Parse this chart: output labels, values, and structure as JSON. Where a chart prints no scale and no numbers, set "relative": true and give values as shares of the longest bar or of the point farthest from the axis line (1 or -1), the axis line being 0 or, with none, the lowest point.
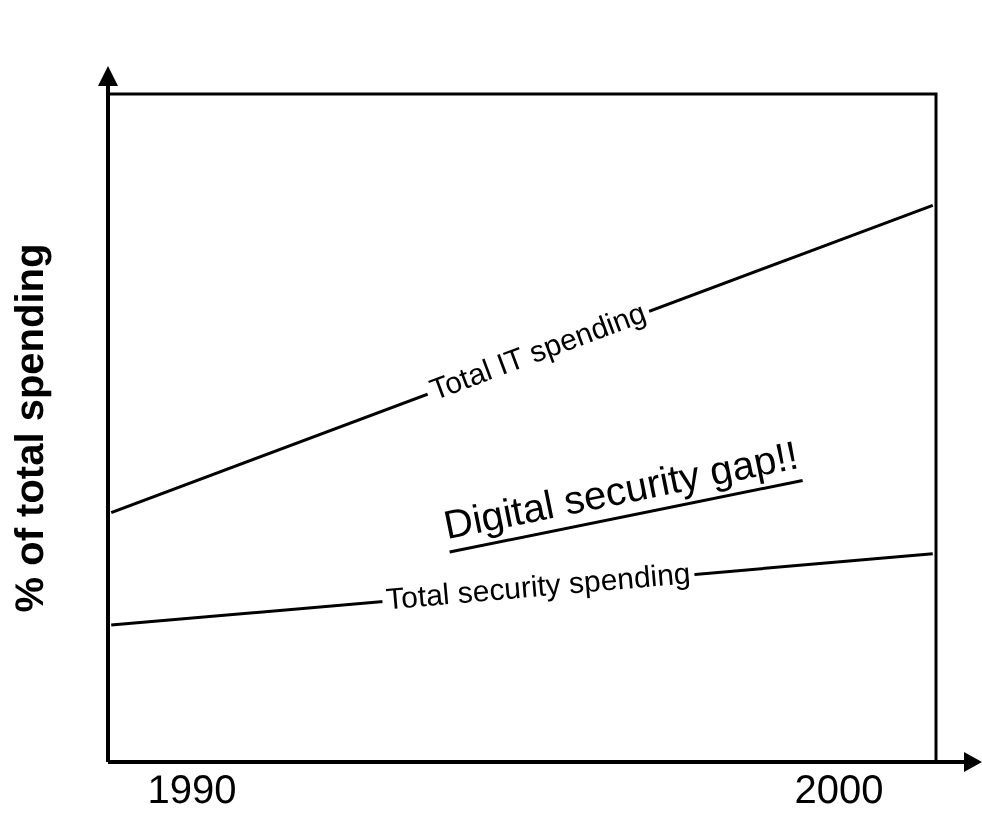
{
  "chart_data": {
    "type": "line",
    "relative": true,
    "ylabel": "% of total spending",
    "xlim": [
      1988.7,
      2001.5
    ],
    "x": [
      1988.75,
      2001.45
    ],
    "xticks": [
      1990,
      2000
    ],
    "grid": false,
    "legend": false,
    "marker": "none",
    "line_style": "solid",
    "series": [
      {
        "name": "Total IT spending",
        "color": "#000000",
        "values": [
          0.448,
          1
        ]
      },
      {
        "name": "Total security spending",
        "color": "#000000",
        "values": [
          0.246,
          0.374
        ]
      }
    ],
    "annotations": [
      "Digital security gap!!"
    ]
  }
}
